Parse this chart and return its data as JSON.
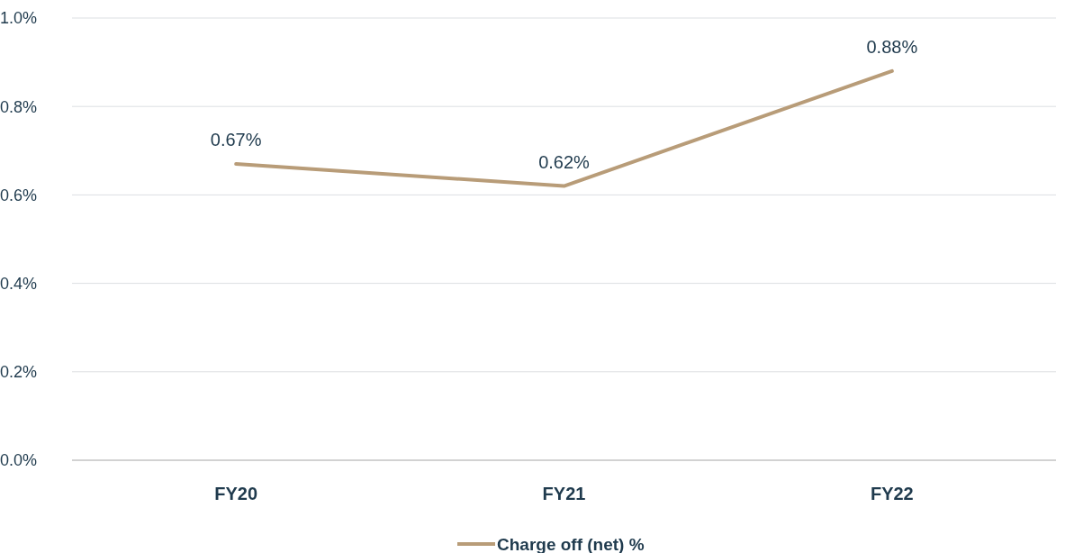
{
  "chart_data": {
    "type": "line",
    "categories": [
      "FY20",
      "FY21",
      "FY22"
    ],
    "series": [
      {
        "name": "Charge off (net) %",
        "color": "#b89c78",
        "values": [
          0.67,
          0.62,
          0.88
        ],
        "value_labels": [
          "0.67%",
          "0.62%",
          "0.88%"
        ]
      }
    ],
    "ylim": [
      0,
      1.0
    ],
    "yticks": [
      {
        "value": 0,
        "label": "0.0%"
      },
      {
        "value": 0.2,
        "label": "0.2%"
      },
      {
        "value": 0.4,
        "label": "0.4%"
      },
      {
        "value": 0.6,
        "label": "0.6%"
      },
      {
        "value": 0.8,
        "label": "0.8%"
      },
      {
        "value": 1.0,
        "label": "1.0%"
      }
    ],
    "grid": "y",
    "legend": "bottom",
    "marker": "none",
    "line_style": "solid"
  }
}
